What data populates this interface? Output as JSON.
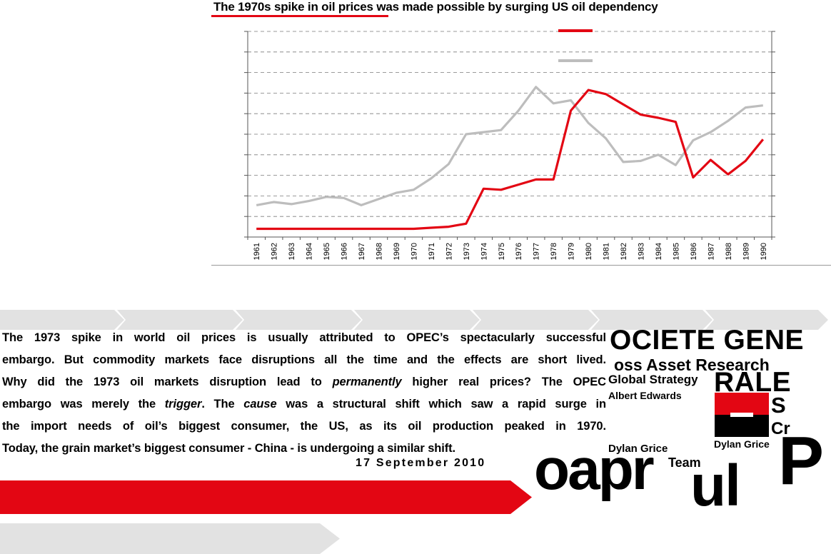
{
  "report": {
    "chart_title": "The 1970s spike in oil prices was made possible by surging US oil dependency",
    "summary_lines": [
      [
        "The 1973 spike in world oil prices is usually attributed to OPEC’s spectacularly successful"
      ],
      [
        "embargo. But commodity markets face disruptions all the time and the effects are short lived."
      ],
      [
        "Why did the 1973 oil markets disruption lead to ",
        {
          "em": "permanently"
        },
        " higher real prices? The OPEC"
      ],
      [
        "embargo was merely the ",
        {
          "em": "trigger"
        },
        ". The ",
        {
          "em": "cause"
        },
        " was a structural shift which saw a rapid surge in"
      ],
      [
        "the import needs of oil’s biggest consumer, the US, as its oil production peaked in 1970."
      ],
      [
        "Today, the grain market’s biggest consumer - China - is undergoing a similar shift."
      ]
    ],
    "date": "17 September 2010"
  },
  "brand": {
    "societe": "OCIETE GENE",
    "oss": "oss Asset Research",
    "global": "Global Strategy",
    "rale": "RALE",
    "albert": "Albert Edwards",
    "s": "S",
    "cr": "Cr",
    "grice1": "Dylan Grice",
    "grice2": "Dylan Grice",
    "team": "Team",
    "oapr": "oapr",
    "ul": "ul",
    "p": "P",
    "logo_red": "#e30613",
    "logo_black": "#000000"
  },
  "colors": {
    "accent_red": "#e30613",
    "grey_series": "#bdbdbd",
    "band_grey": "#e2e2e2"
  },
  "chart_data": {
    "type": "line",
    "title": "The 1970s spike in oil prices was made possible by surging US oil dependency",
    "x": [
      1961,
      1962,
      1963,
      1964,
      1965,
      1966,
      1967,
      1968,
      1969,
      1970,
      1971,
      1972,
      1973,
      1974,
      1975,
      1976,
      1977,
      1978,
      1979,
      1980,
      1981,
      1982,
      1983,
      1984,
      1985,
      1986,
      1987,
      1988,
      1989,
      1990
    ],
    "series": [
      {
        "color": "#e30613",
        "values": [
          0.4,
          0.4,
          0.4,
          0.4,
          0.4,
          0.4,
          0.4,
          0.4,
          0.4,
          0.4,
          0.45,
          0.5,
          0.65,
          2.35,
          2.3,
          2.55,
          2.8,
          2.8,
          6.15,
          7.15,
          6.95,
          6.45,
          5.95,
          5.8,
          5.6,
          2.9,
          3.75,
          3.05,
          3.7,
          4.75
        ]
      },
      {
        "color": "#bdbdbd",
        "values": [
          1.55,
          1.7,
          1.6,
          1.75,
          1.95,
          1.9,
          1.55,
          1.85,
          2.15,
          2.3,
          2.85,
          3.55,
          5.0,
          5.1,
          5.2,
          6.15,
          7.3,
          6.5,
          6.65,
          5.55,
          4.8,
          3.65,
          3.7,
          4.0,
          3.5,
          4.7,
          5.1,
          5.65,
          6.3,
          6.4
        ]
      }
    ],
    "ylim": [
      0,
      10
    ],
    "grid": true,
    "legend": "top-center",
    "xlabel": "",
    "ylabel": ""
  }
}
